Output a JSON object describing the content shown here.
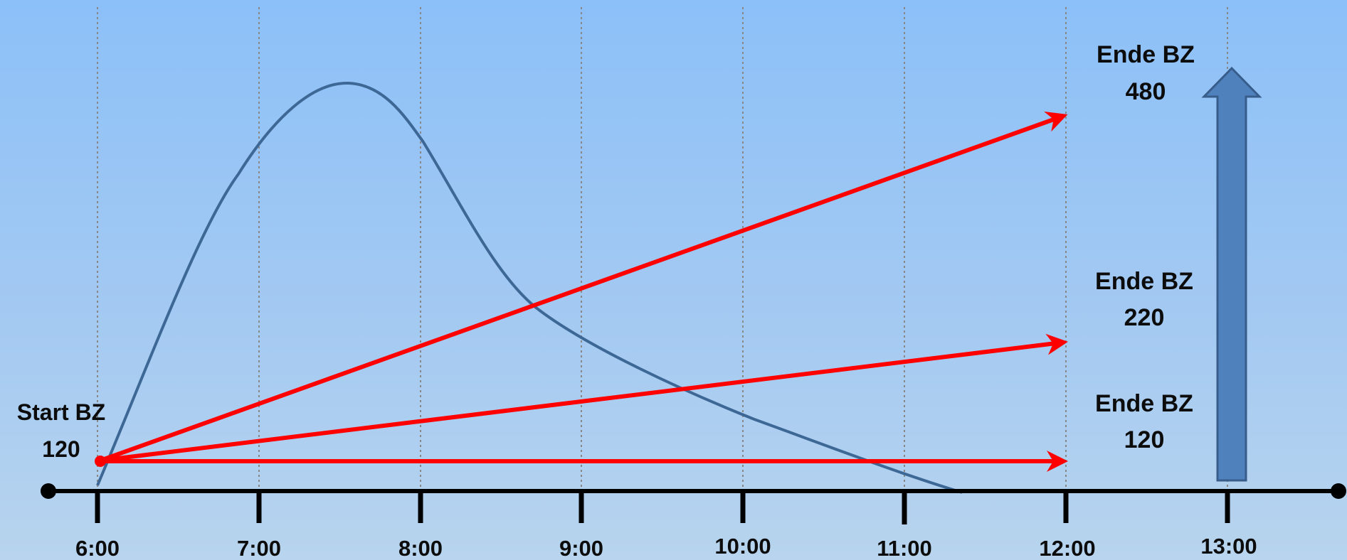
{
  "time_labels": [
    "6:00",
    "7:00",
    "8:00",
    "9:00",
    "10:00",
    "11:00",
    "12:00",
    "13:00"
  ],
  "start_label": {
    "line1": "Start BZ",
    "line2": "120"
  },
  "end_labels": [
    {
      "line1": "Ende BZ",
      "line2": "480"
    },
    {
      "line1": "Ende BZ",
      "line2": "220"
    },
    {
      "line1": "Ende BZ",
      "line2": "120"
    }
  ],
  "colors": {
    "background_top": "#8cc0f8",
    "axis": "#000000",
    "curve": "#3d6896",
    "arrow_red": "#ff0000",
    "big_arrow_fill": "#4f81bd",
    "big_arrow_stroke": "#385d8a",
    "gridline": "#888888"
  },
  "icons": {
    "big_arrow": "up-arrow-icon"
  }
}
